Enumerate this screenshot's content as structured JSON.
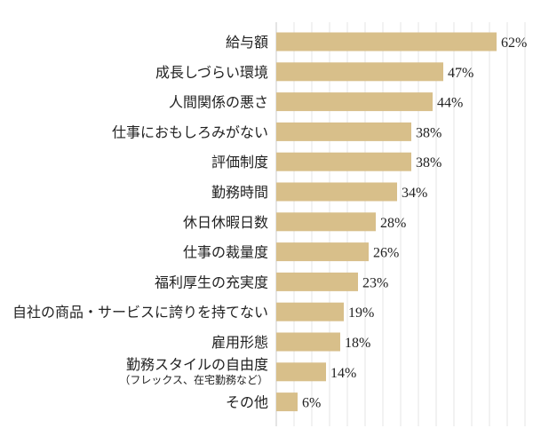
{
  "chart_data": {
    "type": "bar",
    "orientation": "horizontal",
    "categories": [
      {
        "label": "給与額",
        "sub": ""
      },
      {
        "label": "成長しづらい環境",
        "sub": ""
      },
      {
        "label": "人間関係の悪さ",
        "sub": ""
      },
      {
        "label": "仕事におもしろみがない",
        "sub": ""
      },
      {
        "label": "評価制度",
        "sub": ""
      },
      {
        "label": "勤務時間",
        "sub": ""
      },
      {
        "label": "休日休暇日数",
        "sub": ""
      },
      {
        "label": "仕事の裁量度",
        "sub": ""
      },
      {
        "label": "福利厚生の充実度",
        "sub": ""
      },
      {
        "label": "自社の商品・サービスに誇りを持てない",
        "sub": ""
      },
      {
        "label": "雇用形態",
        "sub": ""
      },
      {
        "label": "勤務スタイルの自由度",
        "sub": "（フレックス、在宅勤務など）"
      },
      {
        "label": "その他",
        "sub": ""
      }
    ],
    "values": [
      62,
      47,
      44,
      38,
      38,
      34,
      28,
      26,
      23,
      19,
      18,
      14,
      6
    ],
    "value_labels": [
      "62%",
      "47%",
      "44%",
      "38%",
      "38%",
      "34%",
      "28%",
      "26%",
      "23%",
      "19%",
      "18%",
      "14%",
      "6%"
    ],
    "xlim": [
      0,
      70
    ],
    "grid": true,
    "colors": {
      "bar": "#d8bf8a",
      "grid": "#e4e4e4",
      "axis": "#c8c8c8"
    }
  }
}
